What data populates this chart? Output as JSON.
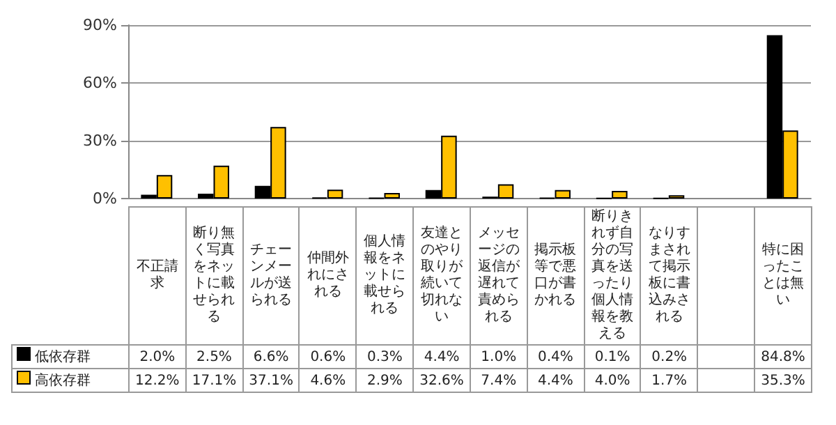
{
  "chart_data": {
    "type": "bar",
    "categories": [
      "不正請求",
      "断り無く写真をネットに載せられる",
      "チェーンメールが送られる",
      "仲間外れにされる",
      "個人情報をネットに載せられる",
      "友達とのやり取りが続いて切れない",
      "メッセージの返信が遅れて責められる",
      "掲示板等で悪口が書かれる",
      "断りきれず自分の写真を送ったり個人情報を教える",
      "なりすまされて掲示板に書込みされる",
      null,
      "特に困ったことは無い"
    ],
    "series": [
      {
        "name": "低依存群",
        "color": "#000000",
        "values": [
          2.0,
          2.5,
          6.6,
          0.6,
          0.3,
          4.4,
          1.0,
          0.4,
          0.1,
          0.2,
          null,
          84.8
        ],
        "value_labels": [
          "2.0%",
          "2.5%",
          "6.6%",
          "0.6%",
          "0.3%",
          "4.4%",
          "1.0%",
          "0.4%",
          "0.1%",
          "0.2%",
          null,
          "84.8%"
        ]
      },
      {
        "name": "高依存群",
        "color": "#ffc000",
        "values": [
          12.2,
          17.1,
          37.1,
          4.6,
          2.9,
          32.6,
          7.4,
          4.4,
          4.0,
          1.7,
          null,
          35.3
        ],
        "value_labels": [
          "12.2%",
          "17.1%",
          "37.1%",
          "4.6%",
          "2.9%",
          "32.6%",
          "7.4%",
          "4.4%",
          "4.0%",
          "1.7%",
          null,
          "35.3%"
        ]
      }
    ],
    "ylim": [
      0,
      90
    ],
    "yticks": [
      {
        "value": 0,
        "label": "0%"
      },
      {
        "value": 30,
        "label": "30%"
      },
      {
        "value": 60,
        "label": "60%"
      },
      {
        "value": 90,
        "label": "90%"
      }
    ],
    "grid": "y",
    "legend": "bottom"
  }
}
